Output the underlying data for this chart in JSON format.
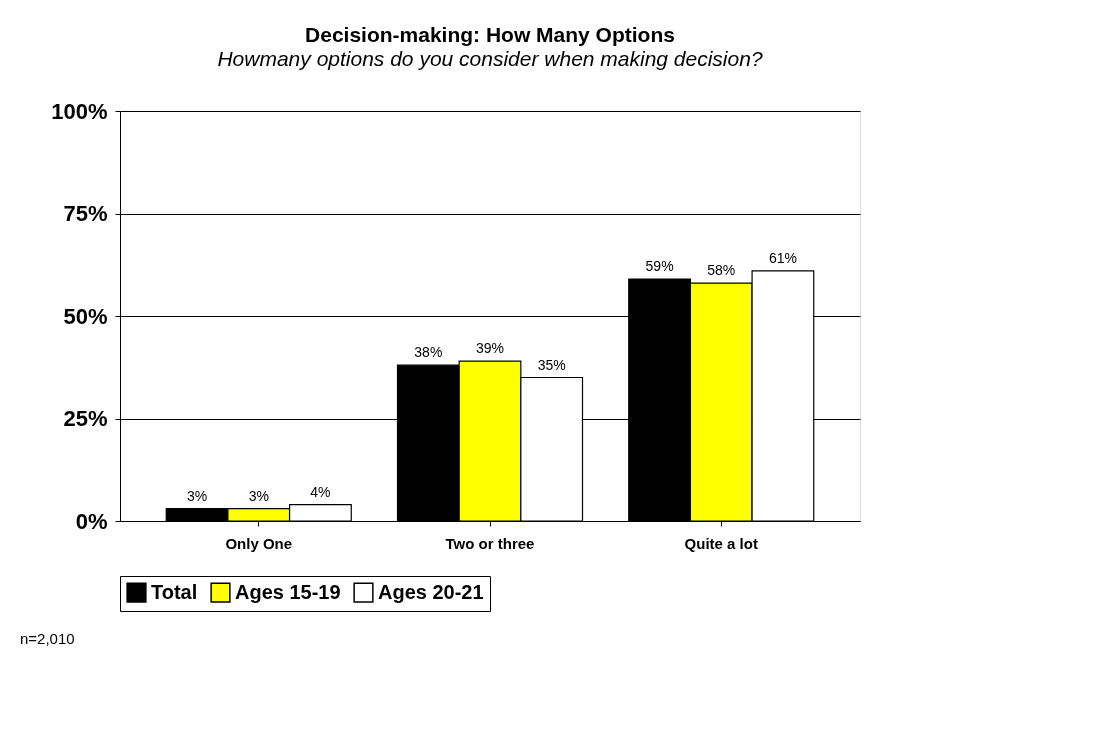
{
  "chart_data": {
    "type": "bar",
    "title": "Decision-making:  How Many Options",
    "subtitle": "Howmany options do you consider when making decision?",
    "categories": [
      "Only One",
      "Two or three",
      "Quite a lot"
    ],
    "series": [
      {
        "name": "Total",
        "color": "#000000",
        "values": [
          3,
          38,
          59
        ],
        "value_labels": [
          "3%",
          "38%",
          "59%"
        ]
      },
      {
        "name": "Ages 15-19",
        "color": "#ffff00",
        "values": [
          3,
          39,
          58
        ],
        "value_labels": [
          "3%",
          "39%",
          "58%"
        ]
      },
      {
        "name": "Ages 20-21",
        "color": "#ffffff",
        "values": [
          4,
          35,
          61
        ],
        "value_labels": [
          "4%",
          "35%",
          "61%"
        ]
      }
    ],
    "ylim": [
      0,
      100
    ],
    "yticks": [
      {
        "value": 0,
        "label": "0%"
      },
      {
        "value": 25,
        "label": "25%"
      },
      {
        "value": 50,
        "label": "50%"
      },
      {
        "value": 75,
        "label": "75%"
      },
      {
        "value": 100,
        "label": "100%"
      }
    ],
    "grid": "y",
    "legend": "bottom",
    "annotations": [
      "n=2,010"
    ]
  }
}
